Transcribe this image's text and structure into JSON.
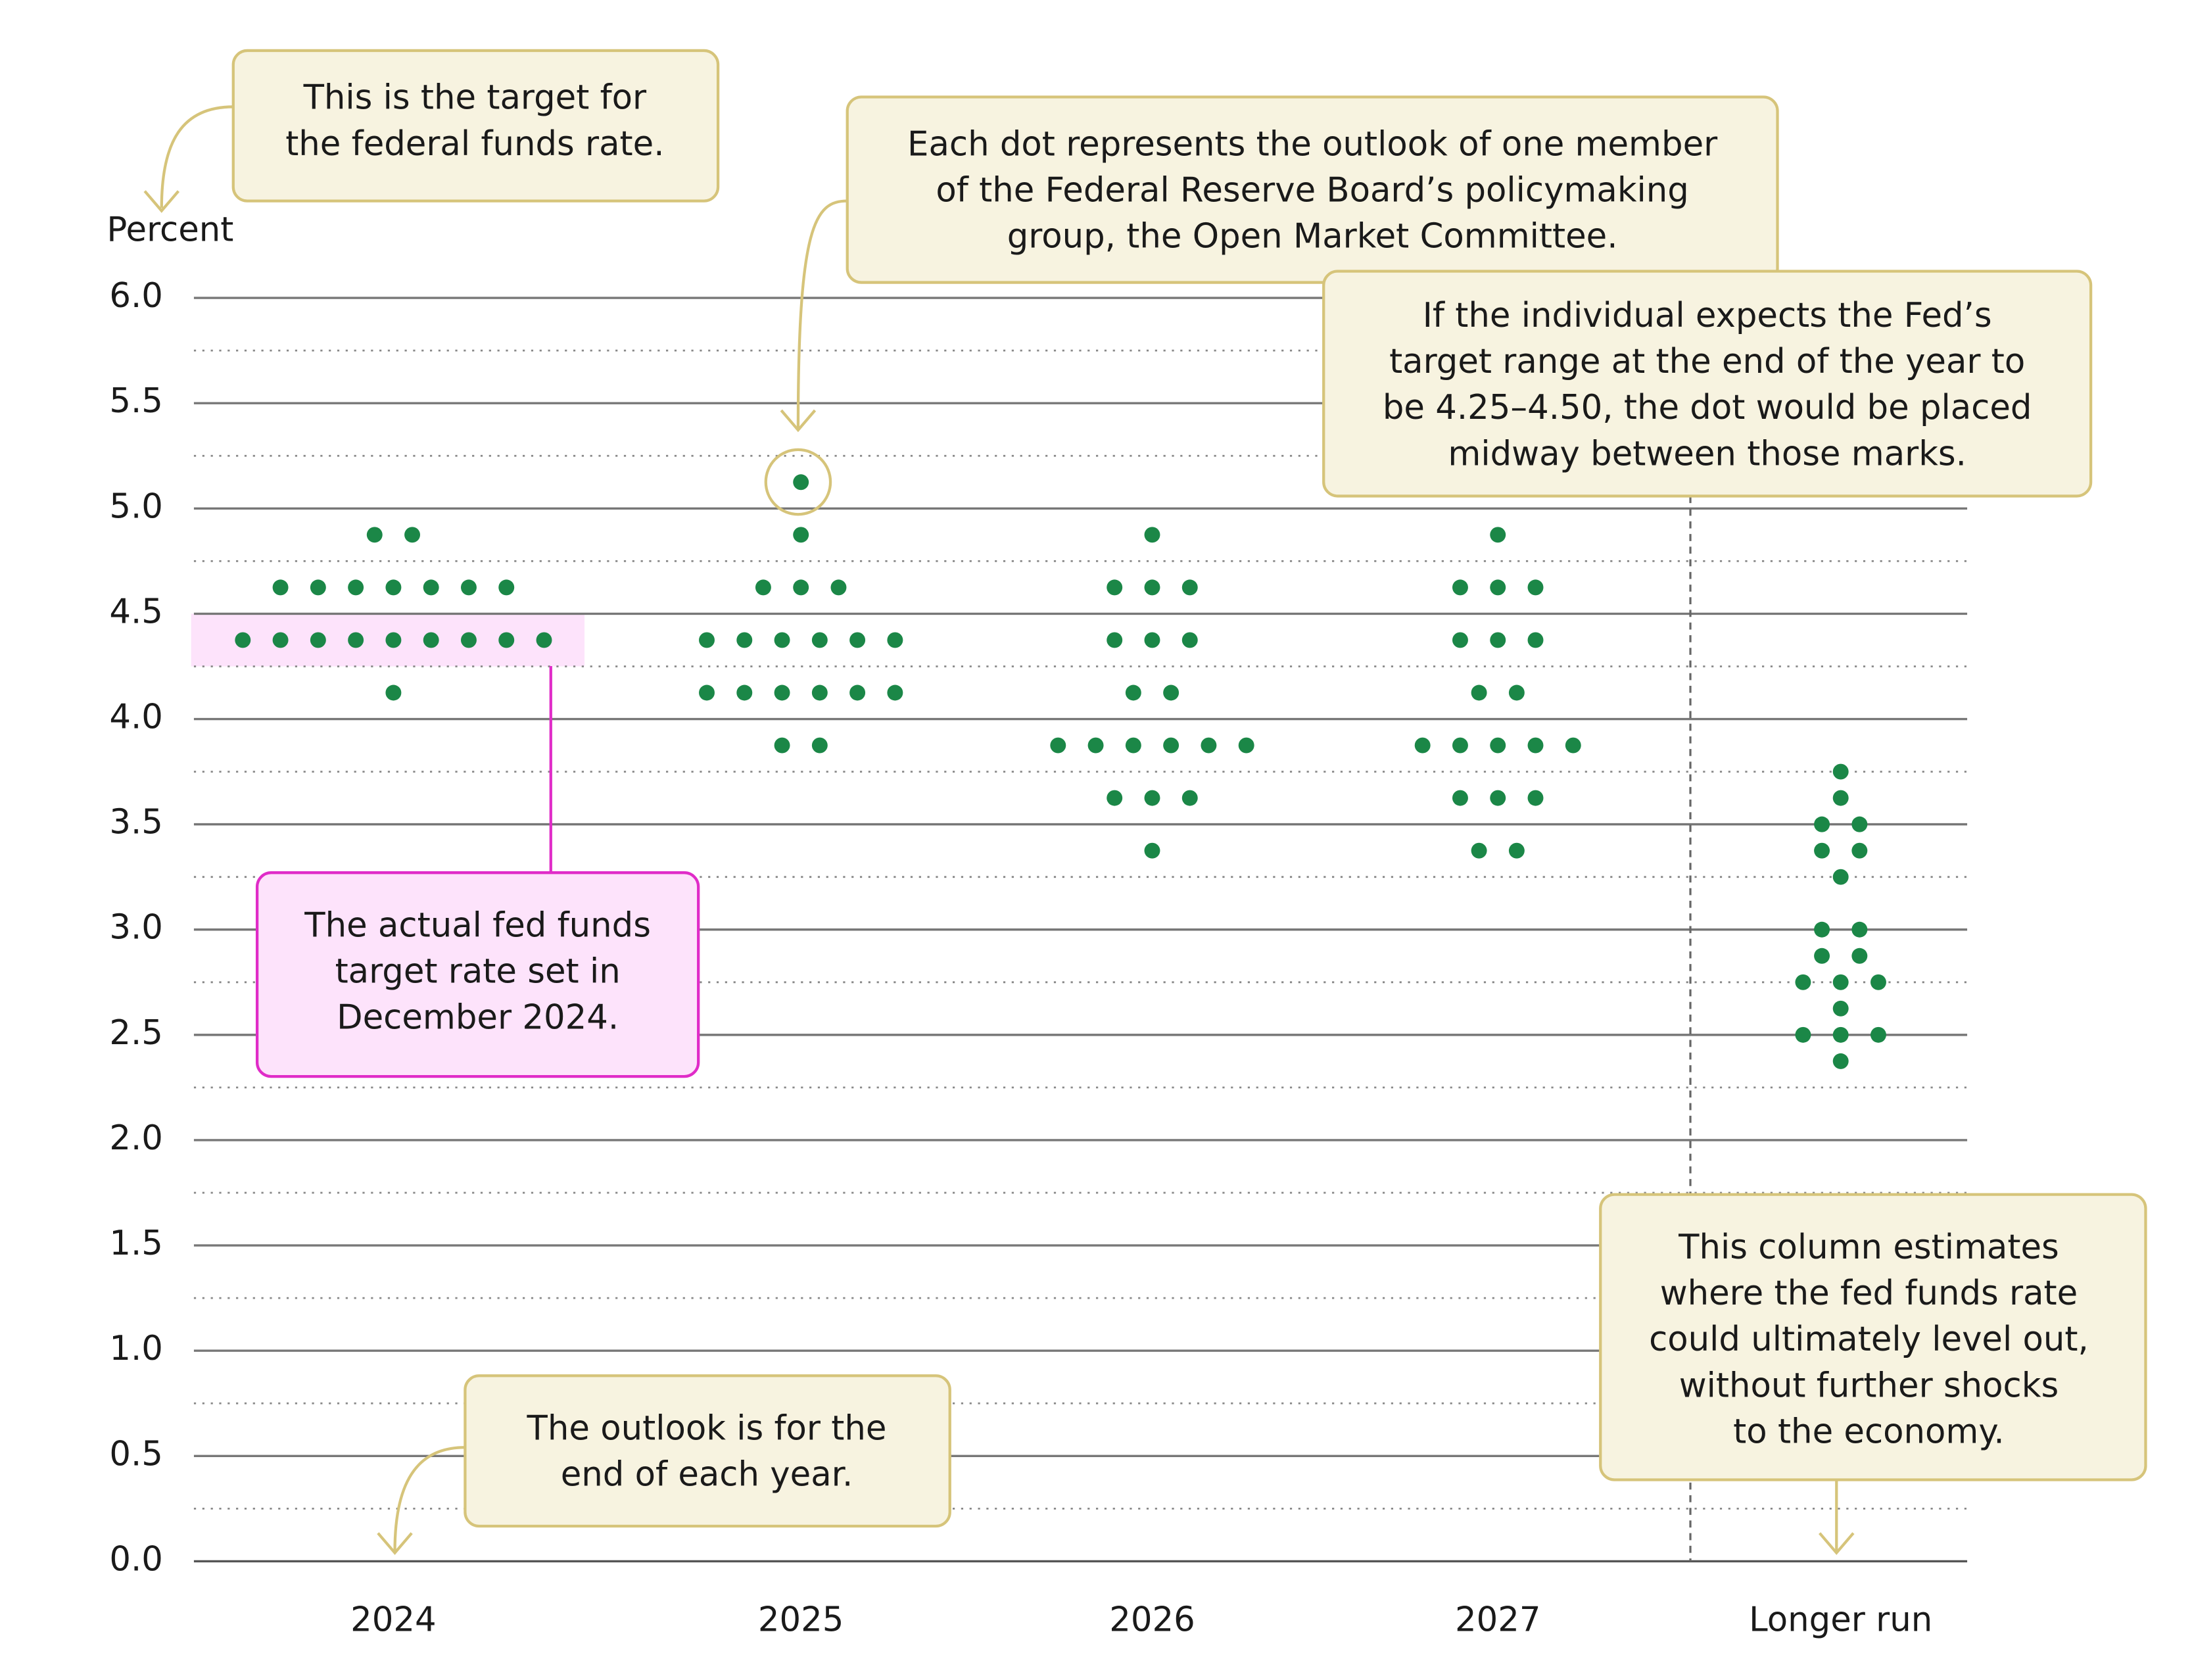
{
  "chart_data": {
    "type": "dot",
    "y_axis_label": "Percent",
    "categories": [
      "2024",
      "2025",
      "2026",
      "2027",
      "Longer run"
    ],
    "values": [
      [
        4.875,
        4.875,
        4.625,
        4.625,
        4.625,
        4.625,
        4.625,
        4.625,
        4.625,
        4.375,
        4.375,
        4.375,
        4.375,
        4.375,
        4.375,
        4.375,
        4.375,
        4.375,
        4.125
      ],
      [
        5.125,
        4.875,
        4.625,
        4.625,
        4.625,
        4.375,
        4.375,
        4.375,
        4.375,
        4.375,
        4.375,
        4.125,
        4.125,
        4.125,
        4.125,
        4.125,
        4.125,
        3.875,
        3.875
      ],
      [
        4.875,
        4.625,
        4.625,
        4.625,
        4.375,
        4.375,
        4.375,
        4.125,
        4.125,
        3.875,
        3.875,
        3.875,
        3.875,
        3.875,
        3.875,
        3.625,
        3.625,
        3.625,
        3.375
      ],
      [
        4.875,
        4.625,
        4.625,
        4.625,
        4.375,
        4.375,
        4.375,
        4.125,
        4.125,
        3.875,
        3.875,
        3.875,
        3.875,
        3.875,
        3.625,
        3.625,
        3.625,
        3.375,
        3.375
      ],
      [
        3.75,
        3.625,
        3.5,
        3.5,
        3.375,
        3.375,
        3.25,
        3.0,
        3.0,
        2.875,
        2.875,
        2.75,
        2.75,
        2.75,
        2.625,
        2.5,
        2.5,
        2.5,
        2.375
      ]
    ],
    "color": "#1b8747",
    "ylim": [
      0,
      6
    ],
    "yticks": [
      {
        "value": 0,
        "label": "0.0"
      },
      {
        "value": 0.5,
        "label": "0.5"
      },
      {
        "value": 1,
        "label": "1.0"
      },
      {
        "value": 1.5,
        "label": "1.5"
      },
      {
        "value": 2,
        "label": "2.0"
      },
      {
        "value": 2.5,
        "label": "2.5"
      },
      {
        "value": 3,
        "label": "3.0"
      },
      {
        "value": 3.5,
        "label": "3.5"
      },
      {
        "value": 4,
        "label": "4.0"
      },
      {
        "value": 4.5,
        "label": "4.5"
      },
      {
        "value": 5,
        "label": "5.0"
      },
      {
        "value": 5.5,
        "label": "5.5"
      },
      {
        "value": 6,
        "label": "6.0"
      }
    ],
    "minor_grid": [
      0.25,
      0.75,
      1.25,
      1.75,
      2.25,
      2.75,
      3.25,
      3.75,
      4.25,
      4.75,
      5.25,
      5.75
    ],
    "grid": true,
    "highlight_range": [
      4.25,
      4.5
    ],
    "annotations": [
      {
        "lines": [
          "This is the target for",
          "the federal funds rate."
        ]
      },
      {
        "lines": [
          "Each dot represents the outlook of one member",
          "of the Federal Reserve Board’s policymaking",
          "group, the Open Market Committee."
        ]
      },
      {
        "lines": [
          "If the individual expects the Fed’s",
          "target range at the end of the year to",
          "be 4.25–4.50, the dot would be placed",
          "midway between those marks."
        ]
      },
      {
        "lines": [
          "The actual fed funds",
          "target rate set in",
          "December 2024."
        ]
      },
      {
        "lines": [
          "The outlook is for the",
          "end of each year."
        ]
      },
      {
        "lines": [
          "This column estimates",
          "where the fed funds rate",
          "could ultimately level out,",
          "without further shocks",
          "to the economy."
        ]
      }
    ]
  }
}
